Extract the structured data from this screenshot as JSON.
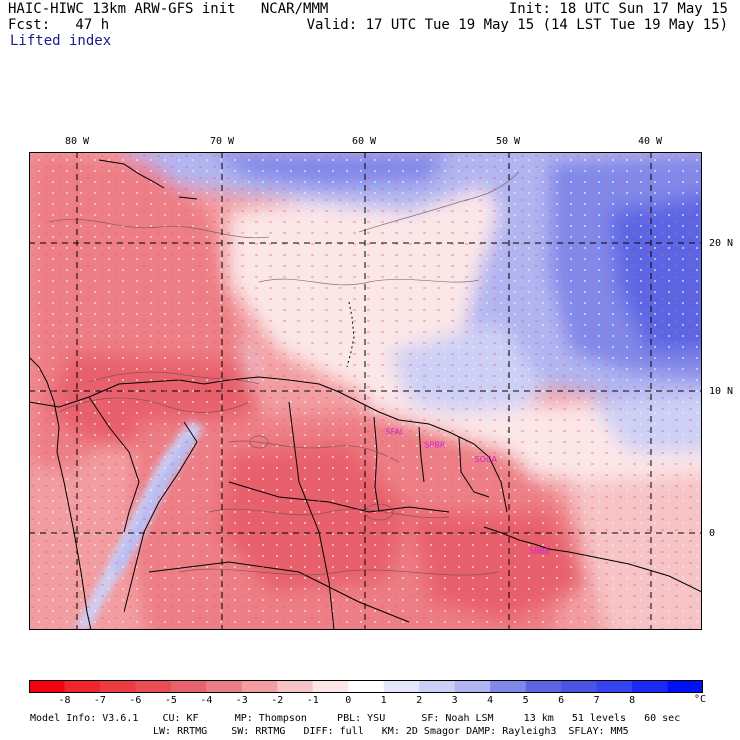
{
  "header": {
    "model_title": "HAIC-HIWC 13km ARW-GFS init",
    "org": "NCAR/MMM",
    "init": "Init: 18 UTC Sun 17 May 15",
    "fcst": "Fcst:   47 h",
    "valid": "Valid: 17 UTC Tue 19 May 15 (14 LST Tue 19 May 15)",
    "field": "Lifted index"
  },
  "axes": {
    "longitude_labels": [
      "80 W",
      "70 W",
      "60 W",
      "50 W",
      "40 W"
    ],
    "latitude_labels": [
      "20 N",
      "10 N",
      "0"
    ]
  },
  "map_labels": [
    {
      "text": "SFAL",
      "lon": -58.5,
      "lat": 6.8
    },
    {
      "text": "SPBR",
      "lon": -55.8,
      "lat": 5.9
    },
    {
      "text": "SOCA",
      "lon": -52.3,
      "lat": 4.9
    },
    {
      "text": "SBBE",
      "lon": -48.5,
      "lat": -1.4
    }
  ],
  "colors": {
    "label_magenta": "#d21ed2",
    "coast": "#000000",
    "deep_red": "#e8616c",
    "light_red": "#f6c4c6",
    "light_blue": "#d4d8f5",
    "mid_blue": "#8088ea"
  },
  "colorbar": {
    "unit": "°C",
    "labels": [
      "-8",
      "-7",
      "-6",
      "-5",
      "-4",
      "-3",
      "-2",
      "-1",
      "0",
      "1",
      "2",
      "3",
      "4",
      "5",
      "6",
      "7",
      "8"
    ],
    "colors": [
      "#f5000f",
      "#f0262e",
      "#ee3b42",
      "#ec4d55",
      "#e8616c",
      "#ed7e85",
      "#f29da1",
      "#f6c4c6",
      "#fbe7e8",
      "#ffffff",
      "#e5e7fa",
      "#cdd0f6",
      "#b0b5f2",
      "#8088ea",
      "#5c66e5",
      "#4a55e7",
      "#3543f0",
      "#1a2af4",
      "#0010f8"
    ]
  },
  "footer": {
    "line1": "Model Info: V3.6.1    CU: KF      MP: Thompson     PBL: YSU      SF: Noah LSM     13 km   51 levels   60 sec",
    "line2": "LW: RRTMG    SW: RRTMG   DIFF: full   KM: 2D Smagor DAMP: Rayleigh3  SFLAY: MM5"
  }
}
